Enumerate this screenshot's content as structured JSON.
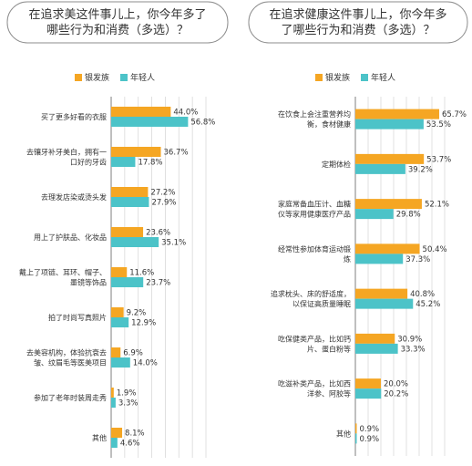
{
  "colors": {
    "older": "#F5A623",
    "young": "#4CC3C8",
    "grid": "#d9d9d9",
    "frame": "#7f7f7f"
  },
  "chart_data": [
    {
      "type": "bar",
      "orientation": "horizontal",
      "title_lines": [
        "在追求美这件事儿上，你今年多了",
        "哪些行为和消费（多选）？"
      ],
      "legend": [
        "银发族",
        "年轻人"
      ],
      "legend_position": "top",
      "xlim": [
        0,
        70
      ],
      "grid": true,
      "categories": [
        [
          "买了更多好看的衣服"
        ],
        [
          "去镶牙补牙美白，拥有一",
          "口好的牙齿"
        ],
        [
          "去理发店染或烫头发"
        ],
        [
          "用上了护肤品、化妆品"
        ],
        [
          "戴上了项链、耳环、帽子、",
          "墨镜等饰品"
        ],
        [
          "拍了时尚写真照片"
        ],
        [
          "去美容机构，体验抗衰去",
          "皱、纹眉毛等医美项目"
        ],
        [
          "参加了老年时装周走秀"
        ],
        [
          "其他"
        ]
      ],
      "series": [
        {
          "name": "银发族",
          "values": [
            44.0,
            36.7,
            27.2,
            23.6,
            11.6,
            9.2,
            6.9,
            1.9,
            8.1
          ],
          "labels": [
            "44.0%",
            "36.7%",
            "27.2%",
            "23.6%",
            "11.6%",
            "9.2%",
            "6.9%",
            "1.9%",
            "8.1%"
          ]
        },
        {
          "name": "年轻人",
          "values": [
            56.8,
            17.8,
            27.9,
            35.1,
            23.7,
            12.9,
            14.0,
            3.3,
            4.6
          ],
          "labels": [
            "56.8%",
            "17.8%",
            "27.9%",
            "35.1%",
            "23.7%",
            "12.9%",
            "14.0%",
            "3.3%",
            "4.6%"
          ]
        }
      ]
    },
    {
      "type": "bar",
      "orientation": "horizontal",
      "title_lines": [
        "在追求健康这件事儿上，你今年多",
        "了哪些行为和消费（多选）？"
      ],
      "legend": [
        "银发族",
        "年轻人"
      ],
      "legend_position": "top",
      "xlim": [
        0,
        70
      ],
      "grid": true,
      "categories": [
        [
          "在饮食上会注重营养均",
          "衡，食材健康"
        ],
        [
          "定期体检"
        ],
        [
          "家庭常备血压计、血糖",
          "仪等家用健康医疗产品"
        ],
        [
          "经常性参加体育运动锻",
          "炼"
        ],
        [
          "追求枕头、床的舒适度，",
          "以保证高质量睡眠"
        ],
        [
          "吃保健类产品，比如钙",
          "片、蛋白粉等"
        ],
        [
          "吃滋补类产品，比如西",
          "洋参、阿胶等"
        ],
        [
          "其他"
        ]
      ],
      "series": [
        {
          "name": "银发族",
          "values": [
            65.7,
            53.7,
            52.1,
            50.4,
            40.8,
            30.9,
            20.0,
            0.9
          ],
          "labels": [
            "65.7%",
            "53.7%",
            "52.1%",
            "50.4%",
            "40.8%",
            "30.9%",
            "20.0%",
            "0.9%"
          ]
        },
        {
          "name": "年轻人",
          "values": [
            53.5,
            39.2,
            29.8,
            37.3,
            45.2,
            33.3,
            20.2,
            0.9
          ],
          "labels": [
            "53.5%",
            "39.2%",
            "29.8%",
            "37.3%",
            "45.2%",
            "33.3%",
            "20.2%",
            "0.9%"
          ]
        }
      ]
    }
  ]
}
